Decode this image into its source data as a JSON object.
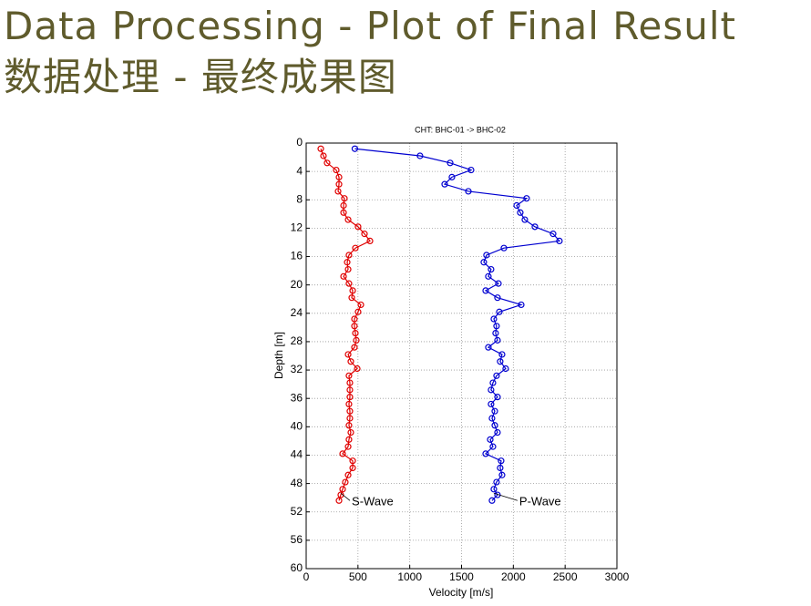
{
  "header": {
    "lines": [
      "Data Processing - Plot of Final Result",
      "数据处理 - 最终成果图"
    ]
  },
  "chart_data": {
    "type": "profile",
    "title": "CHT: BHC-01 -> BHC-02",
    "x_label": "Velocity [m/s]",
    "y_label": "Depth [m]",
    "xlim": [
      0,
      3000
    ],
    "xticks": [
      0,
      500,
      1000,
      1500,
      2000,
      2500,
      3000
    ],
    "ylim": [
      0,
      60
    ],
    "yticks": [
      0,
      4,
      8,
      12,
      16,
      20,
      24,
      28,
      32,
      36,
      40,
      44,
      48,
      52,
      56,
      60
    ],
    "y_inverted": true,
    "grid": true,
    "y": [
      0.8,
      1.8,
      2.8,
      3.8,
      4.8,
      5.8,
      6.8,
      7.8,
      8.8,
      9.8,
      10.8,
      11.8,
      12.8,
      13.8,
      14.8,
      15.8,
      16.8,
      17.8,
      18.8,
      19.8,
      20.8,
      21.8,
      22.8,
      23.8,
      24.8,
      25.8,
      26.8,
      27.8,
      28.8,
      29.8,
      30.8,
      31.8,
      32.8,
      33.8,
      34.8,
      35.8,
      36.8,
      37.8,
      38.8,
      39.8,
      40.8,
      41.8,
      42.8,
      43.8,
      44.8,
      45.8,
      46.8,
      47.8,
      48.8,
      49.6,
      50.4
    ],
    "series": [
      {
        "name": "S-Wave",
        "color": "#e00000",
        "x": [
          141,
          167,
          202,
          290,
          317,
          317,
          308,
          369,
          361,
          361,
          405,
          501,
          563,
          616,
          475,
          413,
          396,
          405,
          361,
          413,
          449,
          440,
          528,
          501,
          466,
          466,
          475,
          484,
          466,
          405,
          431,
          493,
          413,
          422,
          422,
          422,
          413,
          422,
          422,
          413,
          431,
          413,
          405,
          352,
          449,
          449,
          405,
          378,
          352,
          334,
          317
        ]
      },
      {
        "name": "P-Wave",
        "color": "#0000d0",
        "x": [
          470,
          1099,
          1390,
          1592,
          1407,
          1337,
          1566,
          2128,
          2032,
          2067,
          2111,
          2208,
          2384,
          2445,
          1909,
          1741,
          1715,
          1785,
          1759,
          1856,
          1733,
          1847,
          2076,
          1865,
          1812,
          1838,
          1829,
          1847,
          1759,
          1891,
          1873,
          1926,
          1838,
          1803,
          1785,
          1847,
          1785,
          1821,
          1794,
          1821,
          1847,
          1777,
          1803,
          1733,
          1882,
          1873,
          1891,
          1838,
          1812,
          1847,
          1794
        ]
      }
    ]
  }
}
